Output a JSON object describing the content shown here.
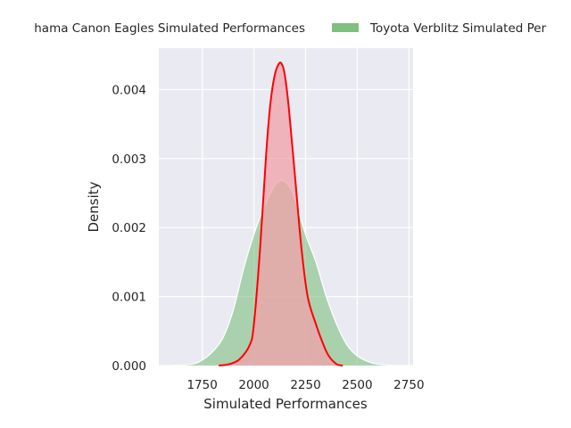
{
  "chart_data": {
    "type": "area",
    "title": "",
    "xlabel": "Simulated Performances",
    "ylabel": "Density",
    "xlim": [
      1540,
      2770
    ],
    "ylim": [
      0,
      0.0046
    ],
    "x_ticks": [
      1750,
      2000,
      2250,
      2500,
      2750
    ],
    "y_ticks": [
      0.0,
      0.001,
      0.002,
      0.003,
      0.004
    ],
    "x_tick_labels": [
      "1750",
      "2000",
      "2250",
      "2500",
      "2750"
    ],
    "y_tick_labels": [
      "0.000",
      "0.001",
      "0.002",
      "0.003",
      "0.004"
    ],
    "grid": true,
    "legend_position": "top (above plot, clipped at both sides)",
    "series": [
      {
        "name": "Yokohama Canon Eagles Simulated Performances",
        "visible_legend_text": "hama Canon Eagles Simulated Performances",
        "fill": "#f0a0aa",
        "line": "#ff0000",
        "x": [
          1830,
          1880,
          1930,
          1980,
          2000,
          2030,
          2060,
          2080,
          2100,
          2120,
          2135,
          2150,
          2170,
          2200,
          2230,
          2260,
          2300,
          2330,
          2360,
          2400,
          2430
        ],
        "y": [
          0.0,
          2e-05,
          9e-05,
          0.0003,
          0.0006,
          0.0017,
          0.0031,
          0.0038,
          0.0042,
          0.00437,
          0.00437,
          0.0042,
          0.0037,
          0.0027,
          0.0017,
          0.001,
          0.0006,
          0.00035,
          0.00015,
          2e-05,
          0.0
        ]
      },
      {
        "name": "Toyota Verblitz Simulated Performances",
        "visible_legend_text": "Toyota Verblitz Simulated Per",
        "fill": "#7fbf7f",
        "line": "#ffffff",
        "x": [
          1600,
          1700,
          1750,
          1800,
          1850,
          1900,
          1950,
          2000,
          2050,
          2100,
          2135,
          2170,
          2200,
          2250,
          2300,
          2350,
          2400,
          2450,
          2500,
          2550,
          2600,
          2700,
          2750
        ],
        "y": [
          0.0,
          2e-05,
          8e-05,
          0.0002,
          0.0004,
          0.0008,
          0.0014,
          0.0019,
          0.0023,
          0.0026,
          0.00268,
          0.0026,
          0.0024,
          0.0019,
          0.0015,
          0.001,
          0.0006,
          0.0003,
          0.00014,
          6e-05,
          2e-05,
          0.0,
          0.0
        ]
      }
    ]
  }
}
